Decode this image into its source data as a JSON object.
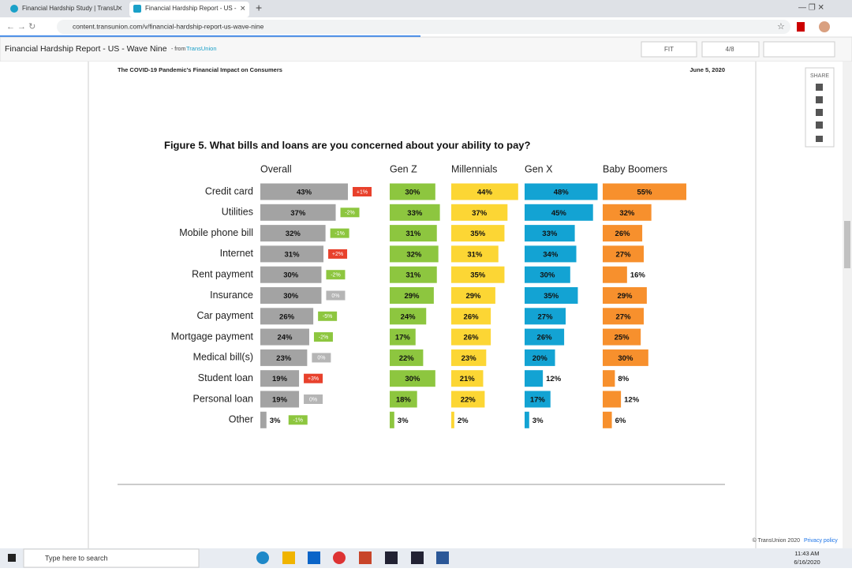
{
  "browser": {
    "tabs": [
      "Financial Hardship Study | TransU",
      "Financial Hardship Report - US -"
    ],
    "url": "content.transunion.com/v/financial-hardship-report-us-wave-nine"
  },
  "viewer": {
    "title": "Financial Hardship Report - US - Wave Nine",
    "from": "- from",
    "brand": "TransUnion",
    "zoom": "FIT",
    "page": "4/8",
    "share": "SHARE"
  },
  "document": {
    "header": "The COVID-19 Pandemic's Financial Impact on Consumers",
    "date": "June 5, 2020",
    "copyright": "© TransUnion 2020",
    "privacy": "Privacy policy"
  },
  "chart_data": {
    "type": "bar",
    "orientation": "horizontal",
    "title": "Figure 5. What bills and loans are you concerned about your ability to pay?",
    "categories": [
      "Credit card",
      "Utilities",
      "Mobile phone bill",
      "Internet",
      "Rent payment",
      "Insurance",
      "Car payment",
      "Mortgage payment",
      "Medical bill(s)",
      "Student loan",
      "Personal loan",
      "Other"
    ],
    "series": [
      {
        "name": "Overall",
        "color": "#a3a3a3",
        "values": [
          43,
          37,
          32,
          31,
          30,
          30,
          26,
          24,
          23,
          19,
          19,
          3
        ],
        "value_labels": [
          "43%",
          "37%",
          "32%",
          "31%",
          "30%",
          "30%",
          "26%",
          "24%",
          "23%",
          "19%",
          "19%",
          "3%"
        ]
      },
      {
        "name": "Gen Z",
        "color": "#8dc63f",
        "values": [
          30,
          33,
          31,
          32,
          31,
          29,
          24,
          17,
          22,
          30,
          18,
          3
        ],
        "value_labels": [
          "30%",
          "33%",
          "31%",
          "32%",
          "31%",
          "29%",
          "24%",
          "17%",
          "22%",
          "30%",
          "18%",
          "3%"
        ]
      },
      {
        "name": "Millennials",
        "color": "#fcd634",
        "values": [
          44,
          37,
          35,
          31,
          35,
          29,
          26,
          26,
          23,
          21,
          22,
          2
        ],
        "value_labels": [
          "44%",
          "37%",
          "35%",
          "31%",
          "35%",
          "29%",
          "26%",
          "26%",
          "23%",
          "21%",
          "22%",
          "2%"
        ]
      },
      {
        "name": "Gen X",
        "color": "#13a3d3",
        "values": [
          48,
          45,
          33,
          34,
          30,
          35,
          27,
          26,
          20,
          12,
          17,
          3
        ],
        "value_labels": [
          "48%",
          "45%",
          "33%",
          "34%",
          "30%",
          "35%",
          "27%",
          "26%",
          "20%",
          "12%",
          "17%",
          "3%"
        ]
      },
      {
        "name": "Baby Boomers",
        "color": "#f7902d",
        "values": [
          55,
          32,
          26,
          27,
          16,
          29,
          27,
          25,
          30,
          8,
          12,
          6
        ],
        "value_labels": [
          "55%",
          "32%",
          "26%",
          "27%",
          "16%",
          "29%",
          "27%",
          "25%",
          "30%",
          "8%",
          "12%",
          "6%"
        ]
      }
    ],
    "changes": {
      "values": [
        1,
        -2,
        -1,
        2,
        -2,
        0,
        -5,
        -2,
        0,
        3,
        0,
        -1
      ],
      "value_labels": [
        "+1%",
        "-2%",
        "-1%",
        "+2%",
        "-2%",
        "0%",
        "-5%",
        "-2%",
        "0%",
        "+3%",
        "0%",
        "-1%"
      ],
      "colors": {
        "up": "#e8412c",
        "down": "#8dc63f",
        "none": "#b5b5b5"
      }
    },
    "xlim": [
      0,
      55
    ]
  },
  "taskbar": {
    "search": "Type here to search",
    "time": "11:43 AM",
    "date": "6/16/2020"
  }
}
